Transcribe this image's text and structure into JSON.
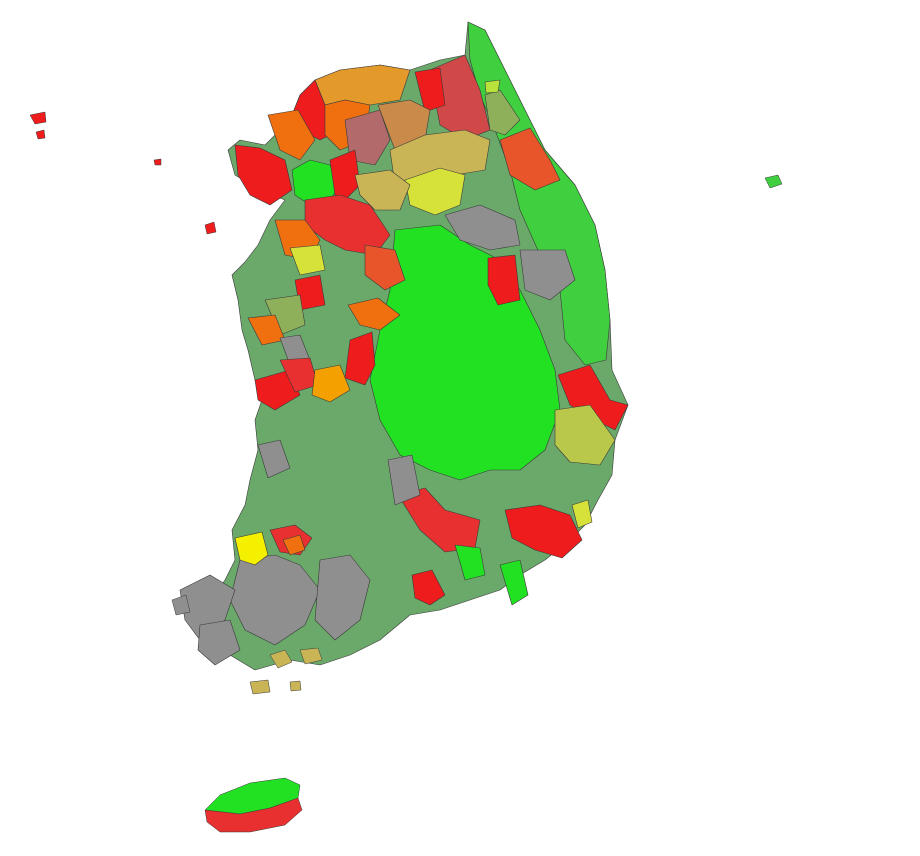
{
  "map": {
    "title": "",
    "legend": [],
    "palette": {
      "bright-green": "#22e022",
      "green": "#3fcf3f",
      "muted-green": "#6aa96a",
      "gray": "#8f8f8f",
      "red": "#ee1c1c",
      "dark-red": "#d04848",
      "orange": "#f07010",
      "amber": "#e49a2a",
      "yellow": "#f4f000",
      "yellow-green": "#d6e23a",
      "olive": "#b9c84a",
      "khaki": "#c9b556",
      "mauve": "#b26a6a"
    }
  }
}
